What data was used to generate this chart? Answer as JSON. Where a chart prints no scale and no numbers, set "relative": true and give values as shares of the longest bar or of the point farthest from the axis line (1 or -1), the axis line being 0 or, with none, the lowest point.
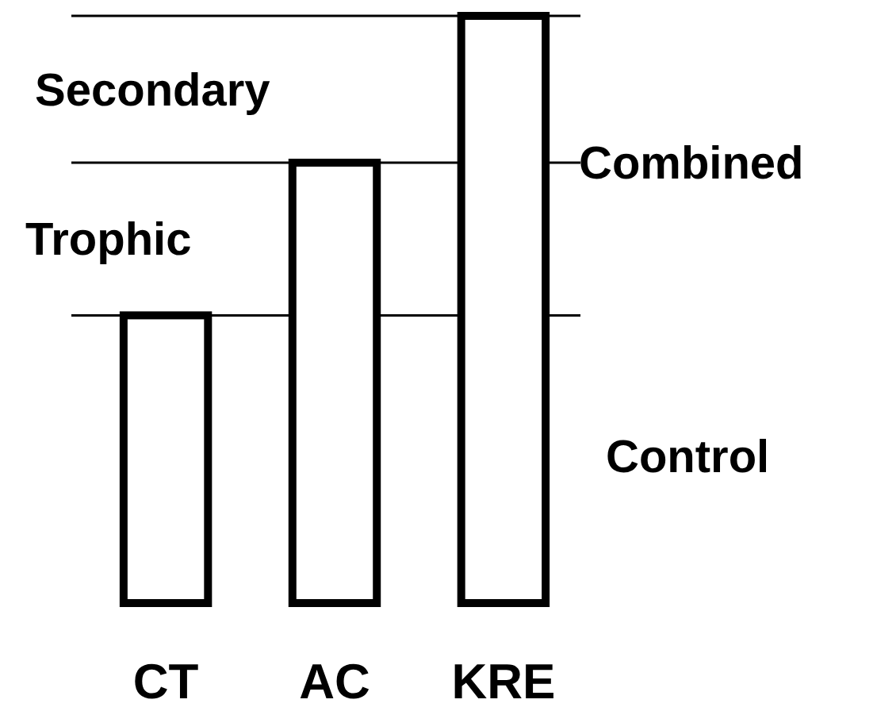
{
  "chart_data": {
    "type": "bar",
    "relative": true,
    "categories": [
      "CT",
      "AC",
      "KRE"
    ],
    "values": [
      0.49,
      0.75,
      1
    ],
    "color": "#ffffff",
    "ref_lines": [
      {
        "axis": "y",
        "value": 0.49
      },
      {
        "axis": "y",
        "value": 0.75
      },
      {
        "axis": "y",
        "value": 1
      }
    ],
    "annotations": [
      "Secondary",
      "Trophic",
      "Combined",
      "Control"
    ]
  }
}
